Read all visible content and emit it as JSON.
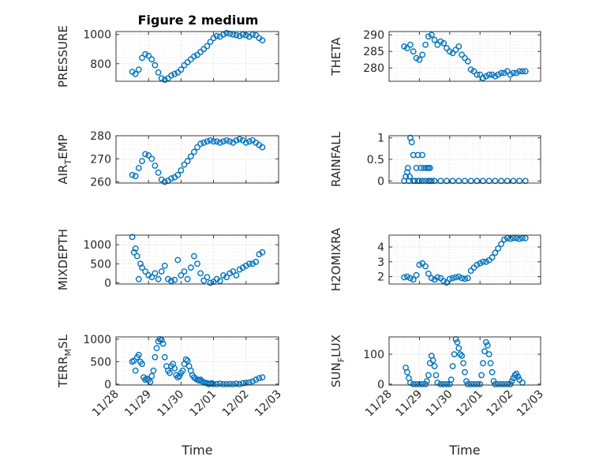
{
  "figure": {
    "title": "Figure 2 medium"
  },
  "colors": {
    "marker": "#0072BD",
    "axis": "#262626",
    "grid": "#d4d4d4"
  },
  "chart_data": [
    {
      "id": "pressure",
      "type": "scatter",
      "marker": "circle-open",
      "ylabel": "PRESSURE",
      "ylabel_sub": null,
      "ylim": [
        680,
        1020
      ],
      "yticks": [
        800,
        1000
      ],
      "ytick_labels": [
        "800",
        "1000"
      ],
      "xlim": [
        0,
        5
      ],
      "xtick_labels": [
        "11/28",
        "11/29",
        "11/30",
        "12/01",
        "12/02",
        "12/03"
      ],
      "show_xticklabels": false,
      "grid": true,
      "x": [
        0.5,
        0.6,
        0.7,
        0.8,
        0.9,
        1.0,
        1.1,
        1.2,
        1.3,
        1.4,
        1.5,
        1.6,
        1.7,
        1.8,
        1.9,
        2.0,
        2.1,
        2.2,
        2.3,
        2.4,
        2.5,
        2.6,
        2.7,
        2.8,
        2.9,
        3.0,
        3.1,
        3.2,
        3.3,
        3.4,
        3.5,
        3.6,
        3.7,
        3.8,
        3.9,
        4.0,
        4.1,
        4.2,
        4.3,
        4.4,
        4.5
      ],
      "y": [
        745,
        730,
        760,
        840,
        865,
        855,
        830,
        790,
        740,
        700,
        690,
        700,
        720,
        730,
        740,
        760,
        790,
        810,
        830,
        850,
        860,
        880,
        900,
        920,
        950,
        975,
        990,
        985,
        1000,
        1010,
        1005,
        1000,
        995,
        990,
        1000,
        995,
        985,
        1000,
        995,
        975,
        960
      ]
    },
    {
      "id": "theta",
      "type": "scatter",
      "marker": "circle-open",
      "ylabel": "THETA",
      "ylabel_sub": null,
      "ylim": [
        276,
        291
      ],
      "yticks": [
        280,
        285,
        290
      ],
      "ytick_labels": [
        "280",
        "285",
        "290"
      ],
      "xlim": [
        0,
        5
      ],
      "xtick_labels": [
        "11/28",
        "11/29",
        "11/30",
        "12/01",
        "12/02",
        "12/03"
      ],
      "show_xticklabels": false,
      "grid": true,
      "x": [
        0.5,
        0.6,
        0.7,
        0.8,
        0.9,
        1.0,
        1.1,
        1.2,
        1.3,
        1.4,
        1.5,
        1.6,
        1.7,
        1.8,
        1.9,
        2.0,
        2.1,
        2.2,
        2.3,
        2.4,
        2.5,
        2.6,
        2.7,
        2.8,
        2.9,
        3.0,
        3.1,
        3.2,
        3.3,
        3.4,
        3.5,
        3.6,
        3.7,
        3.8,
        3.9,
        4.0,
        4.1,
        4.2,
        4.3,
        4.4,
        4.5
      ],
      "y": [
        286.5,
        286,
        287,
        285,
        283,
        282.5,
        284,
        287,
        289.5,
        290,
        288.5,
        287,
        288,
        287.5,
        286,
        285,
        284.5,
        285.5,
        286.5,
        284,
        283,
        282,
        279.5,
        279,
        278,
        278,
        277,
        277.5,
        278,
        278,
        277.5,
        278,
        278.5,
        278.5,
        279,
        278,
        278.5,
        278.5,
        279,
        279,
        279
      ]
    },
    {
      "id": "air_temp",
      "type": "scatter",
      "marker": "circle-open",
      "ylabel": "AIR",
      "ylabel_sub": "T",
      "ylabel_after": "EMP",
      "ylim": [
        259.5,
        280
      ],
      "yticks": [
        260,
        270,
        280
      ],
      "ytick_labels": [
        "260",
        "270",
        "280"
      ],
      "xlim": [
        0,
        5
      ],
      "xtick_labels": [
        "11/28",
        "11/29",
        "11/30",
        "12/01",
        "12/02",
        "12/03"
      ],
      "show_xticklabels": false,
      "grid": true,
      "x": [
        0.5,
        0.6,
        0.7,
        0.8,
        0.9,
        1.0,
        1.1,
        1.2,
        1.3,
        1.4,
        1.5,
        1.6,
        1.7,
        1.8,
        1.9,
        2.0,
        2.1,
        2.2,
        2.3,
        2.4,
        2.5,
        2.6,
        2.7,
        2.8,
        2.9,
        3.0,
        3.1,
        3.2,
        3.3,
        3.4,
        3.5,
        3.6,
        3.7,
        3.8,
        3.9,
        4.0,
        4.1,
        4.2,
        4.3,
        4.4,
        4.5
      ],
      "y": [
        263,
        262.5,
        266,
        269,
        272,
        271.5,
        270,
        267,
        264,
        261,
        260,
        260.5,
        261.5,
        262,
        263,
        265,
        267.5,
        269,
        271,
        273,
        275,
        276.5,
        277,
        277.5,
        278,
        277.5,
        277.5,
        277,
        277.5,
        278,
        277.5,
        277,
        278,
        278.5,
        278,
        277,
        277.5,
        278,
        277,
        276,
        275
      ]
    },
    {
      "id": "rainfall",
      "type": "scatter",
      "marker": "circle-open",
      "ylabel": "RAINFALL",
      "ylabel_sub": null,
      "ylim": [
        -0.05,
        1.05
      ],
      "yticks": [
        0,
        0.5,
        1
      ],
      "ytick_labels": [
        "0",
        "0.5",
        "1"
      ],
      "xlim": [
        0,
        5
      ],
      "xtick_labels": [
        "11/28",
        "11/29",
        "11/30",
        "12/01",
        "12/02",
        "12/03"
      ],
      "show_xticklabels": false,
      "grid": true,
      "x": [
        0.5,
        0.55,
        0.6,
        0.65,
        0.7,
        0.75,
        0.8,
        0.85,
        0.9,
        0.95,
        1.0,
        1.05,
        1.1,
        1.15,
        1.2,
        1.25,
        1.3,
        1.35,
        1.4,
        0.62,
        0.68,
        0.8,
        0.95,
        1.1,
        1.3,
        1.35,
        1.5,
        1.7,
        1.9,
        2.1,
        2.3,
        2.5,
        2.7,
        2.9,
        3.1,
        3.3,
        3.5,
        3.7,
        3.9,
        4.1,
        4.3,
        4.5
      ],
      "y": [
        0,
        0.1,
        0.2,
        0,
        1.0,
        0.9,
        0.6,
        0,
        0.3,
        0.6,
        0,
        0.3,
        0.6,
        0.3,
        0,
        0.3,
        0.3,
        0,
        0,
        0.3,
        0.1,
        0,
        0,
        0,
        0,
        0.3,
        0,
        0,
        0,
        0,
        0,
        0,
        0,
        0,
        0,
        0,
        0,
        0,
        0,
        0,
        0,
        0
      ]
    },
    {
      "id": "mixdepth",
      "type": "scatter",
      "marker": "circle-open",
      "ylabel": "MIXDEPTH",
      "ylabel_sub": null,
      "ylim": [
        -30,
        1250
      ],
      "yticks": [
        0,
        500,
        1000
      ],
      "ytick_labels": [
        "0",
        "500",
        "1000"
      ],
      "xlim": [
        0,
        5
      ],
      "xtick_labels": [
        "11/28",
        "11/29",
        "11/30",
        "12/01",
        "12/02",
        "12/03"
      ],
      "show_xticklabels": false,
      "grid": true,
      "x": [
        0.5,
        0.55,
        0.6,
        0.65,
        0.7,
        0.75,
        0.8,
        0.9,
        1.0,
        1.1,
        1.2,
        1.3,
        1.4,
        1.5,
        1.6,
        1.7,
        1.8,
        1.9,
        2.0,
        2.1,
        2.2,
        2.3,
        2.4,
        2.5,
        2.6,
        2.7,
        2.8,
        2.9,
        3.0,
        3.1,
        3.2,
        3.3,
        3.4,
        3.5,
        3.6,
        3.7,
        3.8,
        3.9,
        4.0,
        4.1,
        4.2,
        4.3,
        4.4,
        4.5
      ],
      "y": [
        1200,
        800,
        900,
        700,
        100,
        500,
        400,
        300,
        200,
        150,
        250,
        100,
        300,
        450,
        100,
        50,
        80,
        600,
        200,
        300,
        100,
        400,
        700,
        500,
        250,
        60,
        150,
        0,
        30,
        100,
        50,
        200,
        150,
        250,
        300,
        200,
        350,
        400,
        450,
        500,
        500,
        550,
        750,
        800
      ]
    },
    {
      "id": "h2omixra",
      "type": "scatter",
      "marker": "circle-open",
      "ylabel": "H2OMIXRA",
      "ylabel_sub": null,
      "ylim": [
        1.5,
        4.8
      ],
      "yticks": [
        2,
        3,
        4
      ],
      "ytick_labels": [
        "2",
        "3",
        "4"
      ],
      "xlim": [
        0,
        5
      ],
      "xtick_labels": [
        "11/28",
        "11/29",
        "11/30",
        "12/01",
        "12/02",
        "12/03"
      ],
      "show_xticklabels": false,
      "grid": true,
      "x": [
        0.5,
        0.6,
        0.7,
        0.8,
        0.9,
        1.0,
        1.1,
        1.2,
        1.3,
        1.4,
        1.5,
        1.6,
        1.7,
        1.8,
        1.9,
        2.0,
        2.1,
        2.2,
        2.3,
        2.4,
        2.5,
        2.6,
        2.7,
        2.8,
        2.9,
        3.0,
        3.1,
        3.2,
        3.3,
        3.4,
        3.5,
        3.6,
        3.7,
        3.8,
        3.9,
        4.0,
        4.1,
        4.2,
        4.3,
        4.4,
        4.5
      ],
      "y": [
        1.95,
        2.0,
        1.9,
        1.8,
        2.1,
        2.8,
        2.9,
        2.7,
        2.2,
        1.9,
        1.8,
        1.95,
        1.9,
        1.7,
        1.6,
        1.85,
        1.9,
        1.95,
        2.0,
        1.9,
        1.85,
        1.9,
        2.4,
        2.6,
        2.8,
        2.9,
        3.0,
        3.0,
        3.1,
        3.3,
        3.6,
        3.9,
        4.2,
        4.5,
        4.6,
        4.55,
        4.6,
        4.6,
        4.55,
        4.6,
        4.6
      ]
    },
    {
      "id": "terr_msl",
      "type": "scatter",
      "marker": "circle-open",
      "ylabel": "TERR",
      "ylabel_sub": "M",
      "ylabel_after": "SL",
      "ylim": [
        -20,
        1050
      ],
      "yticks": [
        0,
        500,
        1000
      ],
      "ytick_labels": [
        "0",
        "500",
        "1000"
      ],
      "xlim": [
        0,
        5
      ],
      "xtick_labels": [
        "11/28",
        "11/29",
        "11/30",
        "12/01",
        "12/02",
        "12/03"
      ],
      "show_xticklabels": true,
      "xlabel": "Time",
      "grid": true,
      "x": [
        0.5,
        0.55,
        0.6,
        0.65,
        0.7,
        0.75,
        0.8,
        0.85,
        0.9,
        0.95,
        1.0,
        1.05,
        1.1,
        1.15,
        1.2,
        1.25,
        1.3,
        1.35,
        1.4,
        1.45,
        1.5,
        1.55,
        1.6,
        1.65,
        1.7,
        1.75,
        1.8,
        1.85,
        1.9,
        1.95,
        2.0,
        2.05,
        2.1,
        2.15,
        2.2,
        2.25,
        2.3,
        2.35,
        2.4,
        2.45,
        2.5,
        2.55,
        2.6,
        2.65,
        2.7,
        2.75,
        2.8,
        2.85,
        2.9,
        2.95,
        3.0,
        3.1,
        3.2,
        3.3,
        3.4,
        3.5,
        3.6,
        3.7,
        3.8,
        3.9,
        4.0,
        4.1,
        4.2,
        4.3,
        4.4,
        4.5
      ],
      "y": [
        500,
        520,
        300,
        600,
        650,
        500,
        450,
        150,
        100,
        120,
        100,
        50,
        180,
        300,
        600,
        800,
        950,
        1000,
        980,
        900,
        600,
        400,
        300,
        250,
        400,
        450,
        350,
        200,
        150,
        180,
        250,
        300,
        450,
        550,
        520,
        400,
        300,
        200,
        150,
        120,
        100,
        80,
        100,
        60,
        40,
        30,
        20,
        0,
        10,
        20,
        0,
        5,
        10,
        0,
        0,
        5,
        0,
        10,
        0,
        20,
        30,
        40,
        60,
        100,
        130,
        150
      ]
    },
    {
      "id": "sun_flux",
      "type": "scatter",
      "marker": "circle-open",
      "ylabel": "SUN",
      "ylabel_sub": "F",
      "ylabel_after": "LUX",
      "ylim": [
        -3,
        158
      ],
      "yticks": [
        0,
        100
      ],
      "ytick_labels": [
        "0",
        "100"
      ],
      "xlim": [
        0,
        5
      ],
      "xtick_labels": [
        "11/28",
        "11/29",
        "11/30",
        "12/01",
        "12/02",
        "12/03"
      ],
      "show_xticklabels": true,
      "xlabel": "Time",
      "grid": true,
      "x": [
        0.55,
        0.6,
        0.65,
        0.7,
        0.8,
        0.9,
        1.0,
        1.1,
        1.2,
        1.25,
        1.3,
        1.35,
        1.4,
        1.45,
        1.5,
        1.55,
        1.6,
        1.7,
        1.8,
        1.9,
        2.0,
        2.05,
        2.1,
        2.15,
        2.2,
        2.25,
        2.3,
        2.35,
        2.4,
        2.45,
        2.5,
        2.55,
        2.6,
        2.7,
        2.8,
        2.9,
        3.0,
        3.05,
        3.1,
        3.15,
        3.2,
        3.25,
        3.3,
        3.35,
        3.4,
        3.45,
        3.5,
        3.6,
        3.7,
        3.8,
        3.9,
        4.0,
        4.05,
        4.1,
        4.15,
        4.2,
        4.25,
        4.3,
        4.4
      ],
      "y": [
        55,
        40,
        20,
        5,
        0,
        0,
        0,
        0,
        0,
        10,
        30,
        70,
        95,
        80,
        60,
        30,
        5,
        0,
        0,
        0,
        0,
        15,
        60,
        100,
        150,
        140,
        120,
        100,
        95,
        70,
        40,
        10,
        0,
        0,
        0,
        0,
        0,
        30,
        70,
        110,
        140,
        130,
        100,
        70,
        40,
        10,
        0,
        0,
        0,
        0,
        0,
        0,
        10,
        20,
        30,
        35,
        25,
        15,
        5
      ]
    }
  ]
}
